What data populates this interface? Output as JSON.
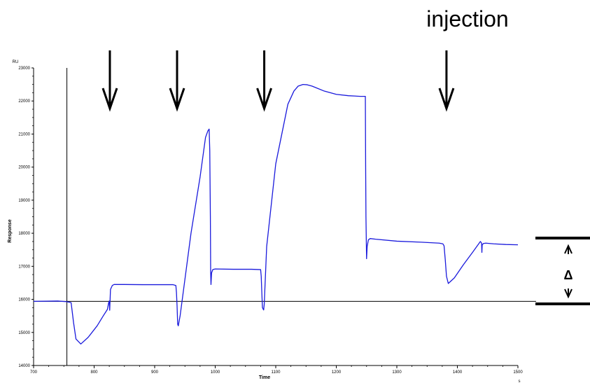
{
  "chart_data": {
    "type": "line",
    "title": "",
    "top_label": "injection",
    "xlabel": "Time",
    "x_unit": "s",
    "ylabel": "Response",
    "y_unit": "RU",
    "xlim": [
      700,
      1500
    ],
    "ylim": [
      14000,
      23000
    ],
    "x_ticks": [
      700,
      800,
      900,
      1000,
      1100,
      1200,
      1300,
      1400,
      1500
    ],
    "y_ticks": [
      14000,
      15000,
      16000,
      17000,
      18000,
      19000,
      20000,
      21000,
      22000,
      23000
    ],
    "baseline_y": 15940,
    "vertical_marker_x": 755,
    "injection_arrows_x": [
      826,
      937,
      1081,
      1382
    ],
    "delta_symbol": "Δ",
    "series": [
      {
        "color": "#1a1adc",
        "x": [
          700,
          740,
          755,
          762,
          766,
          770,
          778,
          790,
          805,
          815,
          822,
          824,
          825,
          825.7,
          827,
          830,
          833,
          836,
          850,
          880,
          910,
          930,
          935,
          936,
          937,
          938,
          939,
          940,
          942,
          960,
          975,
          984,
          988,
          990,
          991,
          992,
          992.5,
          993,
          994,
          996,
          1000,
          1030,
          1060,
          1075,
          1076,
          1077,
          1078,
          1080,
          1081,
          1082,
          1085,
          1100,
          1120,
          1130,
          1137,
          1145,
          1152,
          1160,
          1180,
          1200,
          1220,
          1240,
          1248,
          1248.5,
          1249,
          1250,
          1251,
          1253,
          1256,
          1265,
          1300,
          1340,
          1370,
          1376,
          1378,
          1380,
          1382,
          1385,
          1395,
          1410,
          1425,
          1438,
          1440,
          1440.5,
          1441,
          1443,
          1447,
          1460,
          1480,
          1500
        ],
        "y": [
          15940,
          15950,
          15930,
          15900,
          15300,
          14800,
          14650,
          14850,
          15200,
          15500,
          15700,
          15900,
          15950,
          15670,
          16300,
          16420,
          16450,
          16450,
          16450,
          16445,
          16445,
          16445,
          16420,
          16200,
          15800,
          15250,
          15200,
          15300,
          15500,
          18000,
          19700,
          20900,
          21100,
          21150,
          20500,
          18500,
          16800,
          16450,
          16800,
          16900,
          16920,
          16910,
          16910,
          16900,
          16700,
          16200,
          15750,
          15680,
          15850,
          16300,
          17600,
          20100,
          21900,
          22300,
          22450,
          22500,
          22490,
          22450,
          22300,
          22200,
          22160,
          22140,
          22140,
          20000,
          18500,
          17230,
          17600,
          17800,
          17840,
          17820,
          17760,
          17730,
          17700,
          17680,
          17620,
          17200,
          16700,
          16480,
          16650,
          17050,
          17420,
          17750,
          17700,
          17420,
          17650,
          17690,
          17700,
          17680,
          17660,
          17650
        ]
      }
    ]
  }
}
